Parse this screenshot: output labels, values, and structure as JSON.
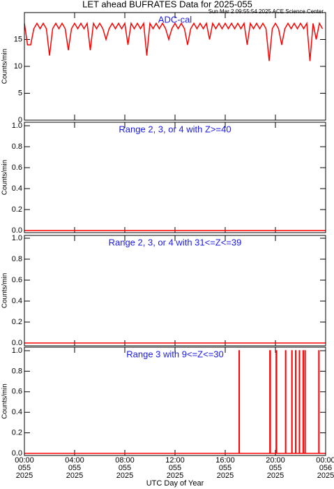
{
  "title": "LET ahead BUFRATES Data for 2025-055",
  "subtitle": "Sun Mar  2 09:55:54 2025 ACE Science Center",
  "chart_data": [
    {
      "type": "line",
      "annotation": "ADC-cal",
      "ylabel": "Counts/min",
      "xlim": [
        0,
        24
      ],
      "xticks": [
        0,
        4,
        8,
        12,
        16,
        20,
        24
      ],
      "ylim": [
        0,
        20
      ],
      "yticks": [
        0,
        5,
        10,
        15
      ],
      "x": [
        0,
        0.25,
        0.5,
        0.75,
        1,
        1.25,
        1.5,
        1.75,
        2,
        2.25,
        2.5,
        2.75,
        3,
        3.25,
        3.5,
        3.75,
        4,
        4.25,
        4.5,
        4.75,
        5,
        5.25,
        5.5,
        5.75,
        6,
        6.25,
        6.5,
        6.75,
        7,
        7.25,
        7.5,
        7.75,
        8,
        8.25,
        8.5,
        8.75,
        9,
        9.25,
        9.5,
        9.75,
        10,
        10.25,
        10.5,
        10.75,
        11,
        11.25,
        11.5,
        11.75,
        12,
        12.25,
        12.5,
        12.75,
        13,
        13.25,
        13.5,
        13.75,
        14,
        14.25,
        14.5,
        14.75,
        15,
        15.25,
        15.5,
        15.75,
        16,
        16.25,
        16.5,
        16.75,
        17,
        17.25,
        17.5,
        17.75,
        18,
        18.25,
        18.5,
        18.75,
        19,
        19.25,
        19.5,
        19.75,
        20,
        20.25,
        20.5,
        20.75,
        21,
        21.25,
        21.5,
        21.75,
        22,
        22.25,
        22.5,
        22.75,
        23,
        23.25,
        23.5,
        23.75
      ],
      "series": [
        {
          "color": "#ff0000",
          "values": [
            18,
            14,
            14,
            17,
            18,
            17,
            18,
            17,
            12,
            17,
            18,
            17,
            18,
            17,
            13,
            17,
            18,
            17,
            18,
            17,
            18,
            13,
            18,
            17,
            18,
            17,
            15,
            17,
            18,
            17,
            18,
            17,
            18,
            14,
            18,
            17,
            18,
            17,
            18,
            12,
            18,
            17,
            18,
            17,
            18,
            17,
            15,
            17,
            18,
            17,
            18,
            17,
            14,
            17,
            18,
            17,
            18,
            17,
            18,
            15,
            18,
            17,
            18,
            17,
            18,
            17,
            18,
            17,
            18,
            17,
            18,
            14,
            18,
            17,
            18,
            17,
            18,
            17,
            11,
            17,
            18,
            17,
            14,
            17,
            18,
            17,
            18,
            17,
            18,
            17,
            18,
            11,
            18,
            15,
            18,
            17
          ]
        }
      ]
    },
    {
      "type": "line",
      "annotation": "Range 2, 3, or 4 with Z>=40",
      "ylabel": "Counts/min",
      "xlim": [
        0,
        24
      ],
      "xticks": [
        0,
        4,
        8,
        12,
        16,
        20,
        24
      ],
      "ylim": [
        0,
        1
      ],
      "yticks": [
        {
          "value": 0,
          "label": "0.0"
        },
        0.2,
        0.4,
        0.6,
        0.8,
        {
          "value": 1,
          "label": "1.0"
        }
      ],
      "x": [
        0,
        24
      ],
      "series": [
        {
          "color": "#ff0000",
          "values": [
            0,
            0
          ]
        }
      ]
    },
    {
      "type": "line",
      "annotation": "Range 2, 3, or 4 with 31<=Z<=39",
      "ylabel": "Counts/min",
      "xlim": [
        0,
        24
      ],
      "xticks": [
        0,
        4,
        8,
        12,
        16,
        20,
        24
      ],
      "ylim": [
        0,
        1
      ],
      "yticks": [
        {
          "value": 0,
          "label": "0.0"
        },
        0.2,
        0.4,
        0.6,
        0.8,
        {
          "value": 1,
          "label": "1.0"
        }
      ],
      "x": [
        0,
        24
      ],
      "series": [
        {
          "color": "#ff0000",
          "values": [
            0,
            0
          ]
        }
      ]
    },
    {
      "type": "line",
      "step": true,
      "annotation": "Range 3 with 9<=Z<=30",
      "ylabel": "Counts/min",
      "xlabel": "UTC Day of Year",
      "xlim": [
        0,
        24
      ],
      "xticks": [
        {
          "value": 0,
          "label": "00:00\n055\n2025"
        },
        {
          "value": 4,
          "label": "04:00\n055\n2025"
        },
        {
          "value": 8,
          "label": "08:00\n055\n2025"
        },
        {
          "value": 12,
          "label": "12:00\n055\n2025"
        },
        {
          "value": 16,
          "label": "16:00\n055\n2025"
        },
        {
          "value": 20,
          "label": "20:00\n055\n2025"
        },
        {
          "value": 24,
          "label": "00:00\n056\n2025"
        }
      ],
      "ylim": [
        0,
        1
      ],
      "yticks": [
        {
          "value": 0,
          "label": "0.0"
        },
        0.2,
        0.4,
        0.6,
        0.8,
        {
          "value": 1,
          "label": "1.0"
        }
      ],
      "x": [
        0,
        17.1,
        17.13,
        19.55,
        19.6,
        20.05,
        20.1,
        20.8,
        20.83,
        21.3,
        21.33,
        21.6,
        21.63,
        21.9,
        21.93,
        22.2,
        22.23,
        22.35,
        22.38,
        23.45,
        23.48,
        24
      ],
      "series": [
        {
          "color": "#ff0000",
          "values": [
            0,
            1,
            0,
            1,
            0,
            1,
            0,
            1,
            0,
            1,
            0,
            1,
            0,
            1,
            0,
            1,
            0,
            1,
            0,
            1,
            0,
            0
          ]
        }
      ]
    }
  ]
}
